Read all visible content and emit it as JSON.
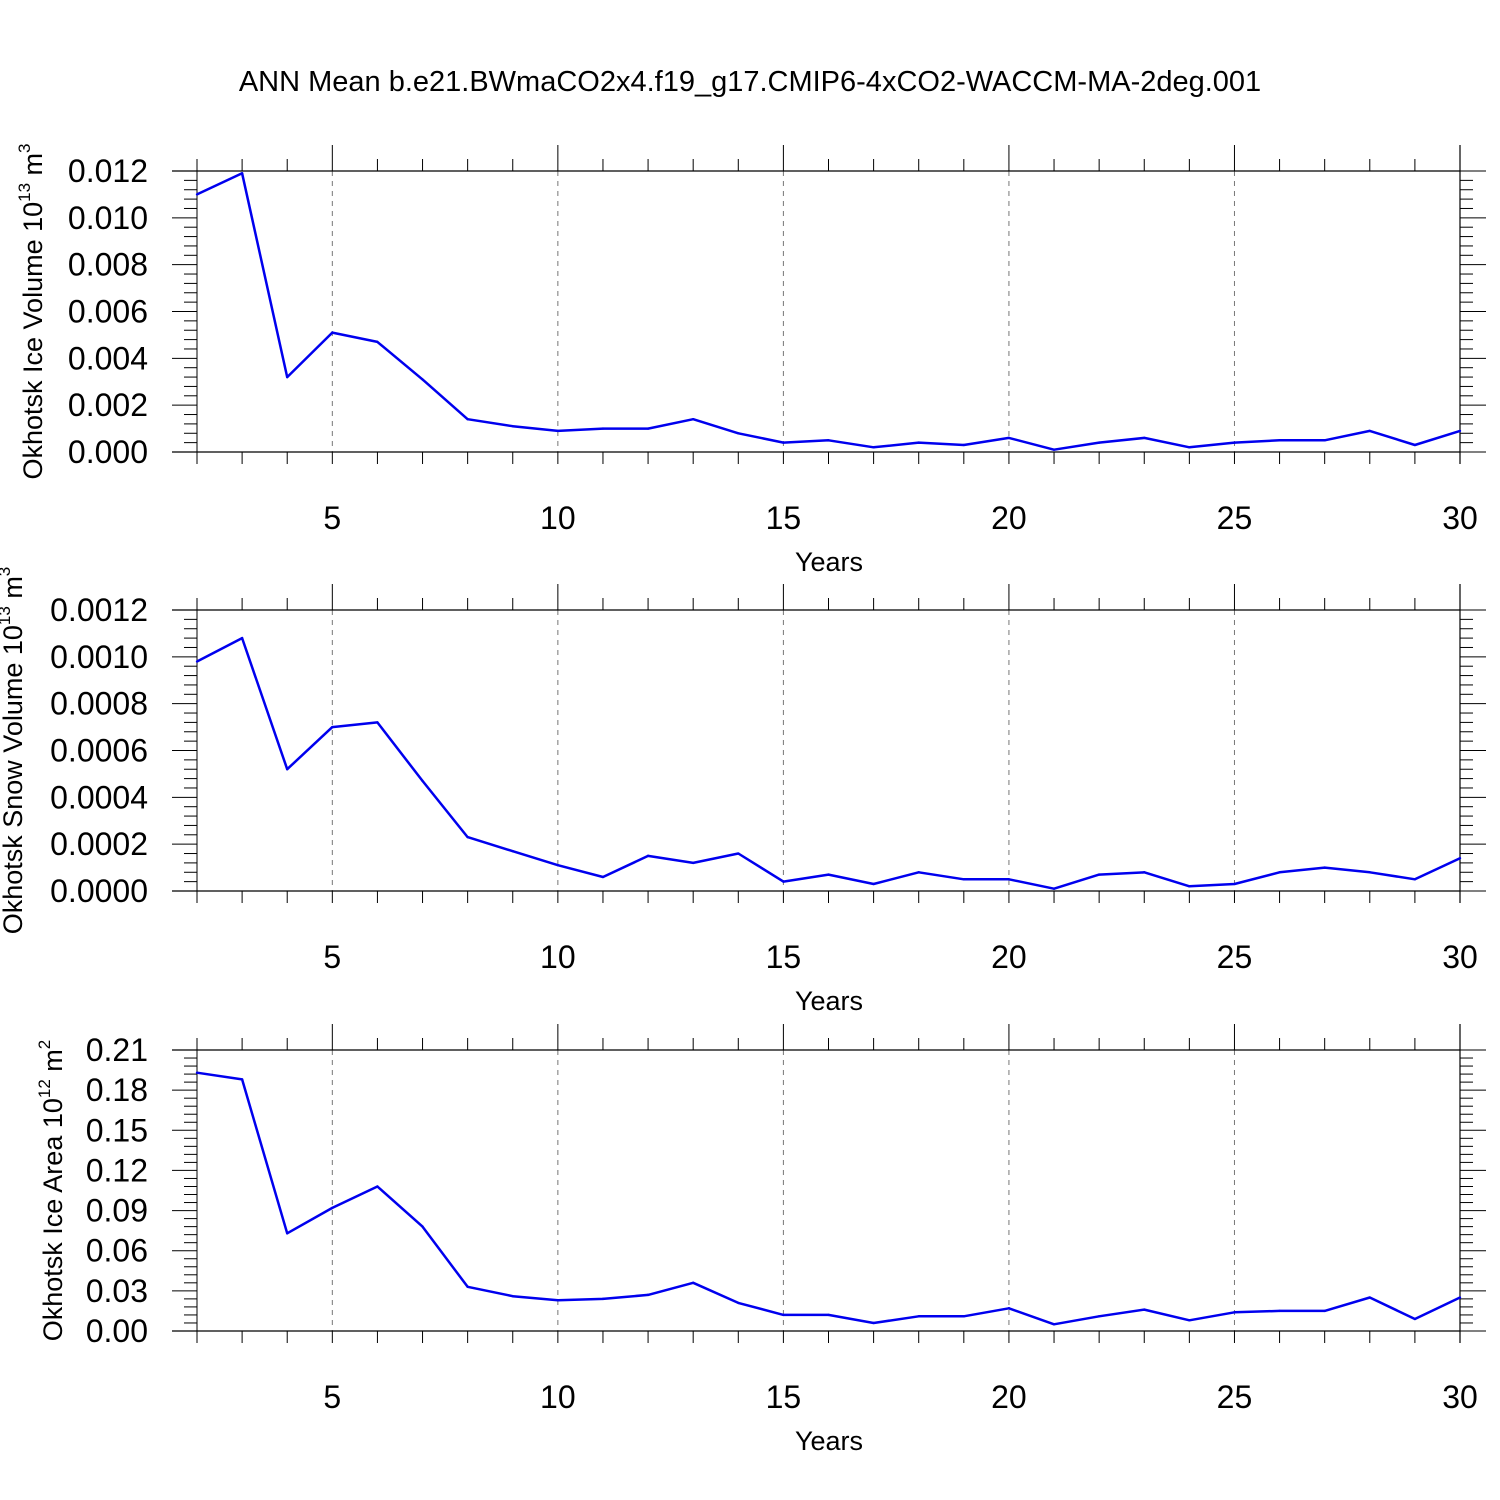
{
  "title": "ANN Mean b.e21.BWmaCO2x4.f19_g17.CMIP6-4xCO2-WACCM-MA-2deg.001",
  "line_color": "#0000ee",
  "chart_data": [
    {
      "type": "line",
      "ylabel": "Okhotsk Ice Volume",
      "ylabel_unit_base": "10",
      "ylabel_unit_exp": "13",
      "ylabel_unit_rest": "m",
      "ylabel_unit_rest_exp": "3",
      "xlabel": "Years",
      "xlim": [
        2,
        30
      ],
      "ylim": [
        0,
        0.012
      ],
      "xticks": [
        5,
        10,
        15,
        20,
        25,
        30
      ],
      "xtick_labels": [
        "5",
        "10",
        "15",
        "20",
        "25",
        "30"
      ],
      "yticks": [
        0,
        0.002,
        0.004,
        0.006,
        0.008,
        0.01,
        0.012
      ],
      "ytick_labels": [
        "0.000",
        "0.002",
        "0.004",
        "0.006",
        "0.008",
        "0.010",
        "0.012"
      ],
      "grid": "vertical dashed at major x ticks",
      "x": [
        2,
        3,
        4,
        5,
        6,
        7,
        8,
        9,
        10,
        11,
        12,
        13,
        14,
        15,
        16,
        17,
        18,
        19,
        20,
        21,
        22,
        23,
        24,
        25,
        26,
        27,
        28,
        29,
        30
      ],
      "values": [
        0.011,
        0.0119,
        0.0032,
        0.0051,
        0.0047,
        0.0031,
        0.0014,
        0.0011,
        0.0009,
        0.001,
        0.001,
        0.0014,
        0.0008,
        0.0004,
        0.0005,
        0.0002,
        0.0004,
        0.0003,
        0.0006,
        0.0001,
        0.0004,
        0.0006,
        0.0002,
        0.0004,
        0.0005,
        0.0005,
        0.0009,
        0.0003,
        0.0009
      ]
    },
    {
      "type": "line",
      "ylabel": "Okhotsk Snow Volume",
      "ylabel_unit_base": "10",
      "ylabel_unit_exp": "13",
      "ylabel_unit_rest": "m",
      "ylabel_unit_rest_exp": "3",
      "xlabel": "Years",
      "xlim": [
        2,
        30
      ],
      "ylim": [
        0,
        0.0012
      ],
      "xticks": [
        5,
        10,
        15,
        20,
        25,
        30
      ],
      "xtick_labels": [
        "5",
        "10",
        "15",
        "20",
        "25",
        "30"
      ],
      "yticks": [
        0,
        0.0002,
        0.0004,
        0.0006,
        0.0008,
        0.001,
        0.0012
      ],
      "ytick_labels": [
        "0.0000",
        "0.0002",
        "0.0004",
        "0.0006",
        "0.0008",
        "0.0010",
        "0.0012"
      ],
      "grid": "vertical dashed at major x ticks",
      "x": [
        2,
        3,
        4,
        5,
        6,
        7,
        8,
        9,
        10,
        11,
        12,
        13,
        14,
        15,
        16,
        17,
        18,
        19,
        20,
        21,
        22,
        23,
        24,
        25,
        26,
        27,
        28,
        29,
        30
      ],
      "values": [
        0.00098,
        0.00108,
        0.00052,
        0.0007,
        0.00072,
        0.00047,
        0.00023,
        0.00017,
        0.00011,
        6e-05,
        0.00015,
        0.00012,
        0.00016,
        4e-05,
        7e-05,
        3e-05,
        8e-05,
        5e-05,
        5e-05,
        1e-05,
        7e-05,
        8e-05,
        2e-05,
        3e-05,
        8e-05,
        0.0001,
        8e-05,
        5e-05,
        0.00014
      ]
    },
    {
      "type": "line",
      "ylabel": "Okhotsk Ice Area",
      "ylabel_unit_base": "10",
      "ylabel_unit_exp": "12",
      "ylabel_unit_rest": "m",
      "ylabel_unit_rest_exp": "2",
      "xlabel": "Years",
      "xlim": [
        2,
        30
      ],
      "ylim": [
        0,
        0.21
      ],
      "xticks": [
        5,
        10,
        15,
        20,
        25,
        30
      ],
      "xtick_labels": [
        "5",
        "10",
        "15",
        "20",
        "25",
        "30"
      ],
      "yticks": [
        0,
        0.03,
        0.06,
        0.09,
        0.12,
        0.15,
        0.18,
        0.21
      ],
      "ytick_labels": [
        "0.00",
        "0.03",
        "0.06",
        "0.09",
        "0.12",
        "0.15",
        "0.18",
        "0.21"
      ],
      "grid": "vertical dashed at major x ticks",
      "x": [
        2,
        3,
        4,
        5,
        6,
        7,
        8,
        9,
        10,
        11,
        12,
        13,
        14,
        15,
        16,
        17,
        18,
        19,
        20,
        21,
        22,
        23,
        24,
        25,
        26,
        27,
        28,
        29,
        30
      ],
      "values": [
        0.193,
        0.188,
        0.073,
        0.092,
        0.108,
        0.078,
        0.033,
        0.026,
        0.023,
        0.024,
        0.027,
        0.036,
        0.021,
        0.012,
        0.012,
        0.006,
        0.011,
        0.011,
        0.017,
        0.005,
        0.011,
        0.016,
        0.008,
        0.014,
        0.015,
        0.015,
        0.025,
        0.009,
        0.025
      ]
    }
  ]
}
